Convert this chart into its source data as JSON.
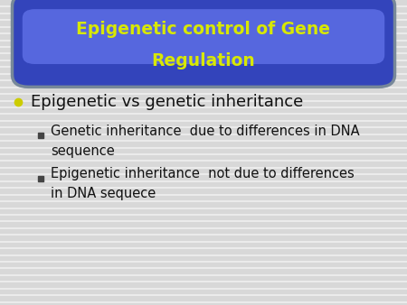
{
  "title_line1": "Epigenetic control of Gene",
  "title_line2": "Regulation",
  "title_color": "#d8e800",
  "title_bg_dark": "#3344bb",
  "title_bg_light": "#6677ee",
  "title_edge_color": "#aaaacc",
  "bg_color": "#d8d8d8",
  "stripe_color": "#ffffff",
  "bullet1_text": "Epigenetic vs genetic inheritance",
  "bullet1_color": "#111111",
  "bullet1_dot_color": "#cccc00",
  "sub_bullet1_line1": "Genetic inheritance  due to differences in DNA",
  "sub_bullet1_line2": "sequence",
  "sub_bullet2_line1": "Epigenetic inheritance  not due to differences",
  "sub_bullet2_line2": "in DNA sequece",
  "sub_bullet_color": "#111111",
  "sub_bullet_marker_color": "#444444",
  "title_fontsize": 13.5,
  "bullet1_fontsize": 13,
  "sub_bullet_fontsize": 10.5
}
